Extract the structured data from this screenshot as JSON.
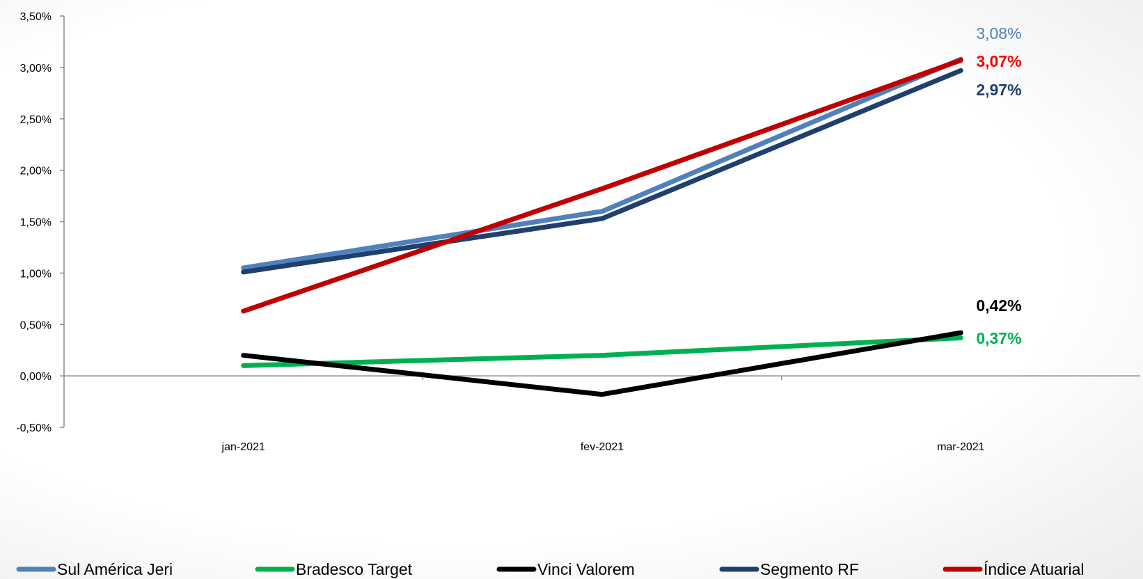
{
  "chart_data": {
    "type": "line",
    "categories": [
      "jan-2021",
      "fev-2021",
      "mar-2021"
    ],
    "ylim": [
      -0.5,
      3.5
    ],
    "yticks": [
      "-0,50%",
      "0,00%",
      "0,50%",
      "1,00%",
      "1,50%",
      "2,00%",
      "2,50%",
      "3,00%",
      "3,50%"
    ],
    "ytick_values": [
      -0.5,
      0.0,
      0.5,
      1.0,
      1.5,
      2.0,
      2.5,
      3.0,
      3.5
    ],
    "grid": false,
    "legend_position": "bottom",
    "series": [
      {
        "name": "Sul América Jeri",
        "color": "#4F81BD",
        "values": [
          1.05,
          1.6,
          3.08
        ],
        "end_label": "3,08%",
        "end_label_bold": false
      },
      {
        "name": "Bradesco Target",
        "color": "#00B050",
        "values": [
          0.1,
          0.2,
          0.37
        ],
        "end_label": "0,37%",
        "end_label_bold": true
      },
      {
        "name": "Vinci Valorem",
        "color": "#000000",
        "values": [
          0.2,
          -0.18,
          0.42
        ],
        "end_label": "0,42%",
        "end_label_bold": true
      },
      {
        "name": "Segmento RF",
        "color": "#1F3F6E",
        "values": [
          1.01,
          1.53,
          2.97
        ],
        "end_label": "2,97%",
        "end_label_bold": true
      },
      {
        "name": "Índice Atuarial",
        "color": "#C00000",
        "values": [
          0.63,
          1.82,
          3.07
        ],
        "end_label": "3,07%",
        "end_label_bold": true,
        "end_label_color": "#FF0000"
      }
    ]
  }
}
